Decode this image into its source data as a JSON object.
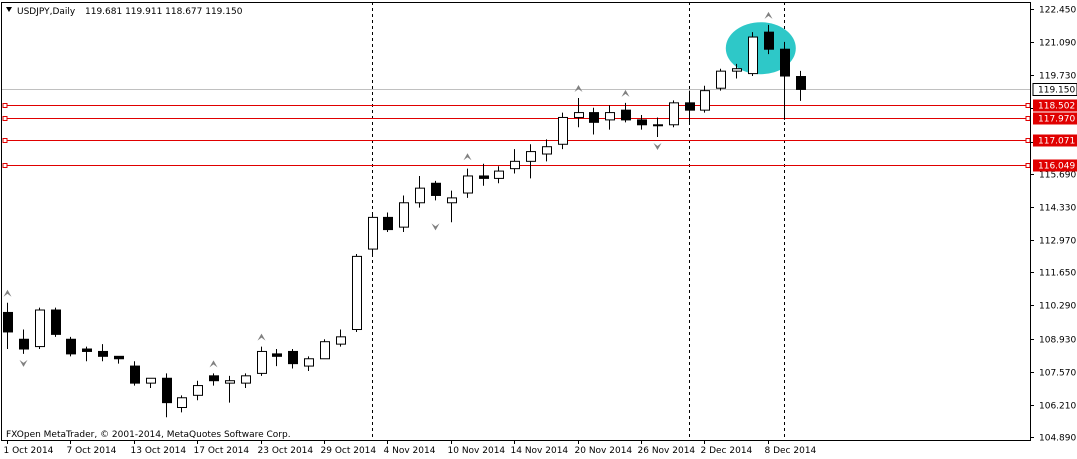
{
  "header": {
    "symbol": "USDJPY,Daily",
    "ohlc": "119.681 119.911 118.677 119.150",
    "menu_icon": "triangle-down-icon"
  },
  "copyright": "FXOpen MetaTrader, © 2001-2014, MetaQuotes Software Corp.",
  "colors": {
    "level_line": "#e00000",
    "level_label_bg": "#e00000",
    "current_price_line": "#c0c0c0",
    "highlight": "#2ec8c8",
    "fractal": "#808080",
    "candle_up": "#ffffff",
    "candle_down": "#000000"
  },
  "chart_data": {
    "type": "candlestick",
    "title": "USDJPY,Daily",
    "price_axis_ticks": [
      "122.450",
      "121.090",
      "119.730",
      "118.370",
      "117.010",
      "115.690",
      "114.330",
      "112.970",
      "111.650",
      "110.290",
      "108.930",
      "107.570",
      "106.210",
      "104.890"
    ],
    "ylim": [
      104.89,
      122.45
    ],
    "date_labels": [
      {
        "date": "1 Oct 2014",
        "index": 0
      },
      {
        "date": "7 Oct 2014",
        "index": 4
      },
      {
        "date": "13 Oct 2014",
        "index": 8
      },
      {
        "date": "17 Oct 2014",
        "index": 12
      },
      {
        "date": "23 Oct 2014",
        "index": 16
      },
      {
        "date": "29 Oct 2014",
        "index": 20
      },
      {
        "date": "4 Nov 2014",
        "index": 24
      },
      {
        "date": "10 Nov 2014",
        "index": 28
      },
      {
        "date": "14 Nov 2014",
        "index": 32
      },
      {
        "date": "20 Nov 2014",
        "index": 36
      },
      {
        "date": "26 Nov 2014",
        "index": 40
      },
      {
        "date": "2 Dec 2014",
        "index": 44
      },
      {
        "date": "8 Dec 2014",
        "index": 48
      }
    ],
    "candles": [
      {
        "o": 110.0,
        "h": 110.4,
        "l": 108.5,
        "c": 109.2
      },
      {
        "o": 108.9,
        "h": 109.3,
        "l": 108.3,
        "c": 108.5
      },
      {
        "o": 108.6,
        "h": 110.2,
        "l": 108.5,
        "c": 110.1
      },
      {
        "o": 110.1,
        "h": 110.2,
        "l": 109.0,
        "c": 109.1
      },
      {
        "o": 108.9,
        "h": 109.0,
        "l": 108.2,
        "c": 108.3
      },
      {
        "o": 108.5,
        "h": 108.6,
        "l": 108.0,
        "c": 108.4
      },
      {
        "o": 108.4,
        "h": 108.7,
        "l": 108.0,
        "c": 108.2
      },
      {
        "o": 108.2,
        "h": 108.2,
        "l": 107.9,
        "c": 108.1
      },
      {
        "o": 107.8,
        "h": 108.0,
        "l": 107.0,
        "c": 107.1
      },
      {
        "o": 107.1,
        "h": 107.3,
        "l": 106.9,
        "c": 107.3
      },
      {
        "o": 107.3,
        "h": 107.5,
        "l": 105.7,
        "c": 106.3
      },
      {
        "o": 106.1,
        "h": 106.6,
        "l": 105.9,
        "c": 106.5
      },
      {
        "o": 106.6,
        "h": 107.2,
        "l": 106.4,
        "c": 107.0
      },
      {
        "o": 107.4,
        "h": 107.5,
        "l": 107.0,
        "c": 107.2
      },
      {
        "o": 107.1,
        "h": 107.4,
        "l": 106.3,
        "c": 107.2
      },
      {
        "o": 107.1,
        "h": 107.5,
        "l": 106.9,
        "c": 107.4
      },
      {
        "o": 107.5,
        "h": 108.6,
        "l": 107.4,
        "c": 108.4
      },
      {
        "o": 108.3,
        "h": 108.5,
        "l": 107.8,
        "c": 108.2
      },
      {
        "o": 108.4,
        "h": 108.5,
        "l": 107.7,
        "c": 107.9
      },
      {
        "o": 107.8,
        "h": 108.2,
        "l": 107.6,
        "c": 108.1
      },
      {
        "o": 108.1,
        "h": 108.9,
        "l": 108.1,
        "c": 108.8
      },
      {
        "o": 108.7,
        "h": 109.3,
        "l": 108.6,
        "c": 109.0
      },
      {
        "o": 109.3,
        "h": 112.4,
        "l": 109.2,
        "c": 112.3
      },
      {
        "o": 112.6,
        "h": 114.1,
        "l": 112.4,
        "c": 113.9
      },
      {
        "o": 113.9,
        "h": 114.1,
        "l": 113.3,
        "c": 113.4
      },
      {
        "o": 113.5,
        "h": 114.8,
        "l": 113.3,
        "c": 114.5
      },
      {
        "o": 114.5,
        "h": 115.6,
        "l": 114.3,
        "c": 115.1
      },
      {
        "o": 115.3,
        "h": 115.4,
        "l": 114.6,
        "c": 114.8
      },
      {
        "o": 114.5,
        "h": 115.0,
        "l": 113.7,
        "c": 114.7
      },
      {
        "o": 114.9,
        "h": 115.9,
        "l": 114.7,
        "c": 115.6
      },
      {
        "o": 115.6,
        "h": 116.1,
        "l": 115.2,
        "c": 115.5
      },
      {
        "o": 115.5,
        "h": 116.0,
        "l": 115.3,
        "c": 115.8
      },
      {
        "o": 115.9,
        "h": 116.7,
        "l": 115.7,
        "c": 116.2
      },
      {
        "o": 116.2,
        "h": 116.9,
        "l": 115.5,
        "c": 116.6
      },
      {
        "o": 116.5,
        "h": 117.1,
        "l": 116.2,
        "c": 116.8
      },
      {
        "o": 116.9,
        "h": 118.2,
        "l": 116.7,
        "c": 118.0
      },
      {
        "o": 118.0,
        "h": 118.8,
        "l": 117.6,
        "c": 118.2
      },
      {
        "o": 118.2,
        "h": 118.4,
        "l": 117.3,
        "c": 117.8
      },
      {
        "o": 117.9,
        "h": 118.5,
        "l": 117.5,
        "c": 118.2
      },
      {
        "o": 118.3,
        "h": 118.6,
        "l": 117.8,
        "c": 117.9
      },
      {
        "o": 117.9,
        "h": 118.1,
        "l": 117.5,
        "c": 117.7
      },
      {
        "o": 117.7,
        "h": 118.0,
        "l": 117.2,
        "c": 117.7
      },
      {
        "o": 117.7,
        "h": 118.7,
        "l": 117.6,
        "c": 118.6
      },
      {
        "o": 118.6,
        "h": 119.1,
        "l": 117.7,
        "c": 118.3
      },
      {
        "o": 118.3,
        "h": 119.3,
        "l": 118.2,
        "c": 119.1
      },
      {
        "o": 119.2,
        "h": 120.0,
        "l": 119.1,
        "c": 119.9
      },
      {
        "o": 119.9,
        "h": 120.2,
        "l": 119.6,
        "c": 120.0
      },
      {
        "o": 119.8,
        "h": 121.5,
        "l": 119.7,
        "c": 121.3
      },
      {
        "o": 121.5,
        "h": 121.8,
        "l": 120.6,
        "c": 120.8
      },
      {
        "o": 120.8,
        "h": 121.1,
        "l": 117.9,
        "c": 119.7
      },
      {
        "o": 119.68,
        "h": 119.91,
        "l": 118.68,
        "c": 119.15
      }
    ],
    "fractals": [
      {
        "index": 0,
        "price": 110.4,
        "dir": "up"
      },
      {
        "index": 1,
        "price": 108.3,
        "dir": "down"
      },
      {
        "index": 16,
        "price": 108.6,
        "dir": "up"
      },
      {
        "index": 13,
        "price": 107.5,
        "dir": "up"
      },
      {
        "index": 27,
        "price": 113.9,
        "dir": "down"
      },
      {
        "index": 29,
        "price": 116.0,
        "dir": "up"
      },
      {
        "index": 36,
        "price": 118.8,
        "dir": "up"
      },
      {
        "index": 39,
        "price": 118.6,
        "dir": "up"
      },
      {
        "index": 41,
        "price": 117.2,
        "dir": "down"
      },
      {
        "index": 48,
        "price": 121.8,
        "dir": "up"
      }
    ],
    "horizontal_levels": [
      {
        "price": 118.502,
        "label": "118.502"
      },
      {
        "price": 117.97,
        "label": "117.970"
      },
      {
        "price": 117.071,
        "label": "117.071"
      },
      {
        "price": 116.049,
        "label": "116.049"
      }
    ],
    "current_price": {
      "price": 119.15,
      "label": "119.150"
    },
    "vertical_lines_at_index": [
      23,
      43,
      49
    ],
    "highlight": {
      "center_index": 48,
      "center_price": 120.8,
      "shape": "ellipse"
    }
  }
}
